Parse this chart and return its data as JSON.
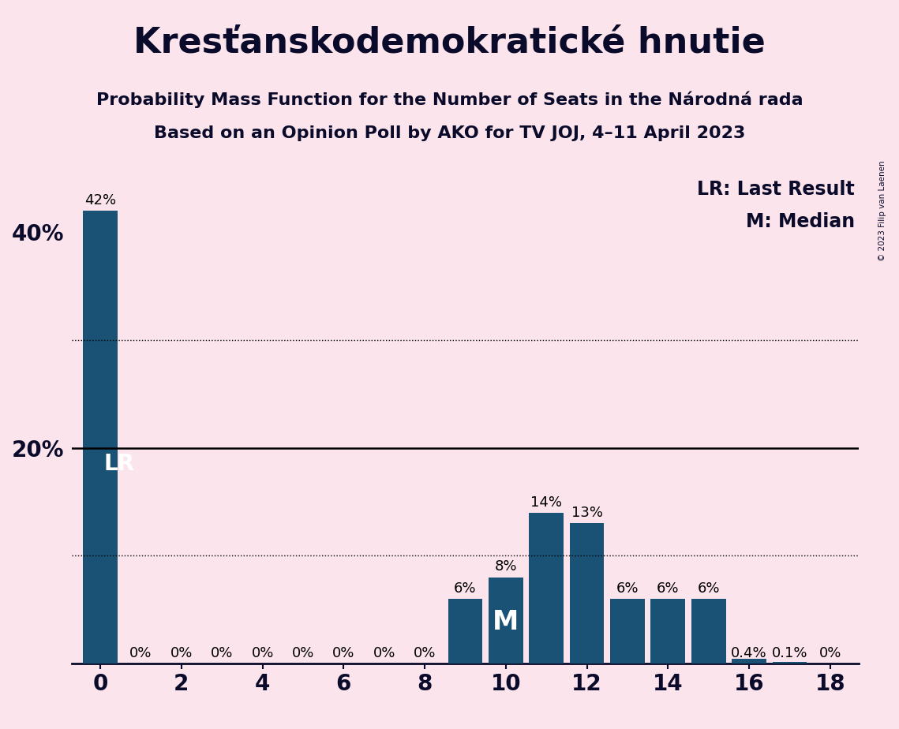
{
  "title": "Kresťanskodemokratické hnutie",
  "subtitle1": "Probability Mass Function for the Number of Seats in the Národná rada",
  "subtitle2": "Based on an Opinion Poll by AKO for TV JOJ, 4–11 April 2023",
  "copyright": "© 2023 Filip van Laenen",
  "background_color": "#fce4ec",
  "bar_color": "#1a5276",
  "seats": [
    0,
    1,
    2,
    3,
    4,
    5,
    6,
    7,
    8,
    9,
    10,
    11,
    12,
    13,
    14,
    15,
    16,
    17,
    18
  ],
  "values": [
    0.42,
    0.0,
    0.0,
    0.0,
    0.0,
    0.0,
    0.0,
    0.0,
    0.0,
    0.06,
    0.08,
    0.14,
    0.13,
    0.06,
    0.06,
    0.06,
    0.004,
    0.001,
    0.0
  ],
  "labels": [
    "42%",
    "0%",
    "0%",
    "0%",
    "0%",
    "0%",
    "0%",
    "0%",
    "0%",
    "6%",
    "8%",
    "14%",
    "13%",
    "6%",
    "6%",
    "6%",
    "0.4%",
    "0.1%",
    "0%"
  ],
  "lr_value": 0.2,
  "median_seat": 10,
  "dotted_lines": [
    0.1,
    0.3
  ],
  "ylim": [
    0,
    0.46
  ],
  "yticks": [
    0.2,
    0.4
  ],
  "ytick_labels": [
    "20%",
    "40%"
  ],
  "xticks": [
    0,
    2,
    4,
    6,
    8,
    10,
    12,
    14,
    16,
    18
  ],
  "title_fontsize": 32,
  "subtitle_fontsize": 16,
  "legend_fontsize": 17,
  "bar_label_fontsize": 13,
  "axis_label_fontsize": 20,
  "lr_label_fontsize": 20,
  "median_label_fontsize": 24,
  "bar_width": 0.85
}
